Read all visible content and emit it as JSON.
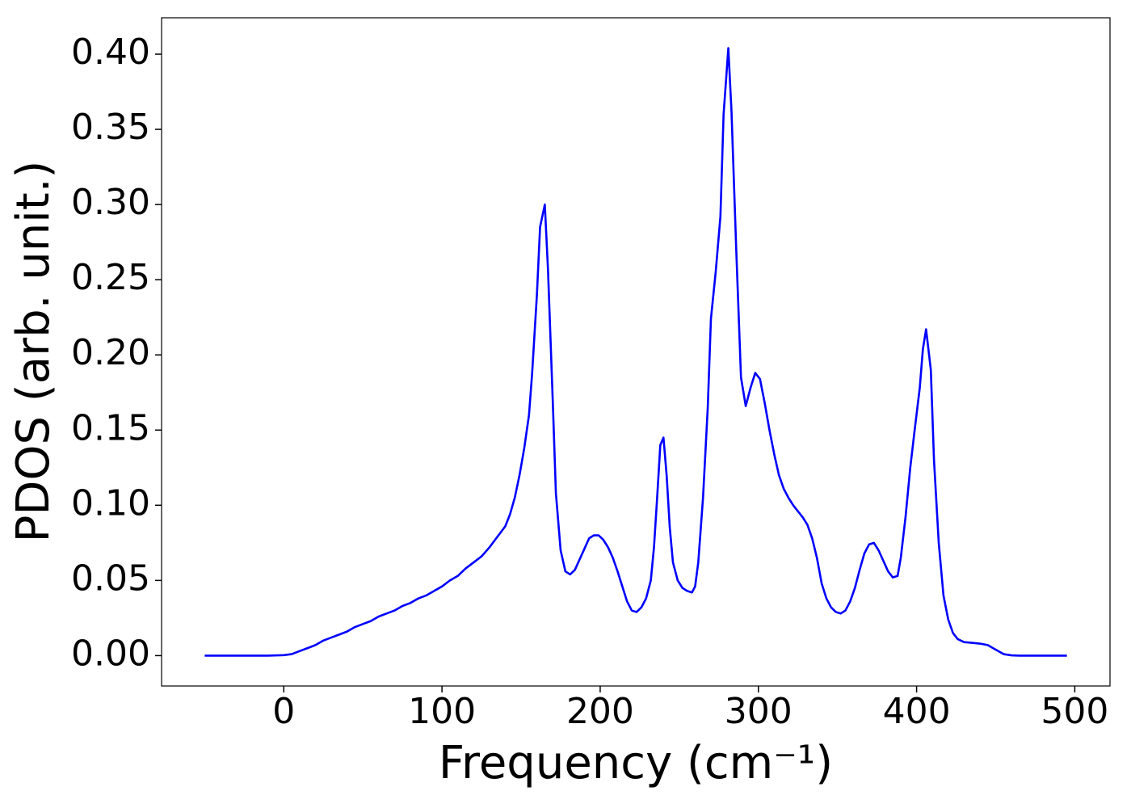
{
  "chart_data": {
    "type": "line",
    "xlabel": "Frequency (cm⁻¹)",
    "ylabel": "PDOS (arb. unit.)",
    "x": [
      -50,
      -40,
      -30,
      -20,
      -10,
      0,
      5,
      10,
      15,
      20,
      25,
      30,
      35,
      40,
      45,
      50,
      55,
      60,
      65,
      70,
      75,
      80,
      85,
      90,
      95,
      100,
      105,
      110,
      115,
      120,
      125,
      130,
      135,
      140,
      143,
      146,
      149,
      152,
      155,
      157,
      160,
      162,
      165,
      167,
      170,
      172,
      175,
      178,
      181,
      184,
      187,
      190,
      193,
      196,
      199,
      202,
      205,
      208,
      211,
      214,
      217,
      220,
      223,
      226,
      229,
      232,
      234,
      236,
      238,
      240,
      242,
      244,
      246,
      249,
      252,
      255,
      258,
      260,
      262,
      265,
      268,
      270,
      273,
      276,
      278,
      281,
      283,
      286,
      289,
      292,
      295,
      298,
      301,
      304,
      307,
      310,
      313,
      316,
      319,
      322,
      325,
      328,
      331,
      334,
      337,
      340,
      343,
      346,
      349,
      352,
      355,
      358,
      361,
      364,
      367,
      370,
      373,
      376,
      379,
      382,
      385,
      388,
      390,
      393,
      396,
      399,
      402,
      404,
      406,
      409,
      411,
      414,
      417,
      420,
      423,
      426,
      430,
      435,
      440,
      445,
      450,
      455,
      460,
      465,
      475,
      485,
      495
    ],
    "series": [
      {
        "name": "PDOS",
        "color": "#0000ff",
        "values": [
          0,
          0,
          0,
          0,
          0,
          0.0003,
          0.001,
          0.003,
          0.005,
          0.007,
          0.01,
          0.012,
          0.014,
          0.016,
          0.019,
          0.021,
          0.023,
          0.026,
          0.028,
          0.03,
          0.033,
          0.035,
          0.038,
          0.04,
          0.043,
          0.046,
          0.05,
          0.053,
          0.058,
          0.062,
          0.066,
          0.072,
          0.079,
          0.086,
          0.094,
          0.105,
          0.12,
          0.138,
          0.16,
          0.188,
          0.24,
          0.285,
          0.3,
          0.257,
          0.17,
          0.108,
          0.07,
          0.056,
          0.054,
          0.057,
          0.064,
          0.071,
          0.078,
          0.08,
          0.08,
          0.077,
          0.072,
          0.065,
          0.056,
          0.046,
          0.036,
          0.03,
          0.029,
          0.032,
          0.038,
          0.05,
          0.072,
          0.105,
          0.14,
          0.145,
          0.12,
          0.085,
          0.062,
          0.05,
          0.045,
          0.043,
          0.042,
          0.046,
          0.062,
          0.105,
          0.165,
          0.224,
          0.255,
          0.292,
          0.36,
          0.404,
          0.362,
          0.27,
          0.185,
          0.166,
          0.178,
          0.188,
          0.184,
          0.168,
          0.15,
          0.134,
          0.12,
          0.111,
          0.105,
          0.1,
          0.096,
          0.092,
          0.087,
          0.078,
          0.065,
          0.048,
          0.038,
          0.032,
          0.029,
          0.028,
          0.03,
          0.036,
          0.045,
          0.057,
          0.068,
          0.074,
          0.075,
          0.07,
          0.063,
          0.056,
          0.052,
          0.053,
          0.065,
          0.092,
          0.125,
          0.152,
          0.178,
          0.204,
          0.217,
          0.19,
          0.13,
          0.075,
          0.04,
          0.024,
          0.015,
          0.011,
          0.009,
          0.0085,
          0.008,
          0.007,
          0.004,
          0.001,
          0.0002,
          0,
          0,
          0,
          0
        ]
      }
    ],
    "xlim": [
      -77.25,
      522.25
    ],
    "xticks": [
      0,
      100,
      200,
      300,
      400,
      500
    ],
    "ylim": [
      -0.0202,
      0.4242
    ],
    "yticks": [
      {
        "value": 0,
        "label": "0.00"
      },
      {
        "value": 0.05,
        "label": "0.05"
      },
      {
        "value": 0.1,
        "label": "0.10"
      },
      {
        "value": 0.15,
        "label": "0.15"
      },
      {
        "value": 0.2,
        "label": "0.20"
      },
      {
        "value": 0.25,
        "label": "0.25"
      },
      {
        "value": 0.3,
        "label": "0.30"
      },
      {
        "value": 0.35,
        "label": "0.35"
      },
      {
        "value": 0.4,
        "label": "0.40"
      }
    ],
    "grid": false
  }
}
